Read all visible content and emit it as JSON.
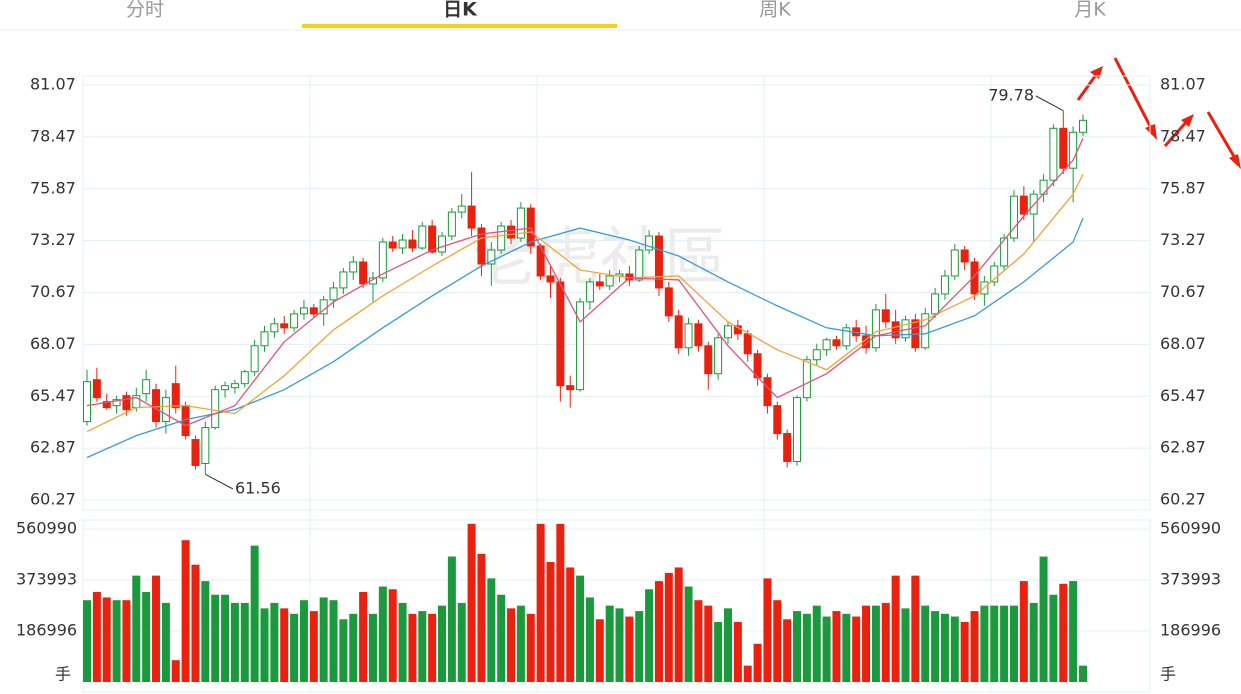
{
  "tabs": [
    "分时",
    "日K",
    "周K",
    "月K"
  ],
  "active_tab": 1,
  "watermark": "老虎社區",
  "chart_data": {
    "type": "candlestick",
    "open": [
      64.2,
      66.3,
      65.2,
      65.0,
      65.5,
      64.9,
      65.6,
      65.8,
      64.2,
      66.1,
      65.0,
      63.3,
      62.1,
      63.9,
      65.8,
      65.9,
      66.1,
      66.7,
      68.0,
      68.7,
      69.1,
      68.9,
      69.6,
      69.9,
      69.6,
      70.3,
      70.9,
      71.7,
      72.2,
      71.1,
      71.4,
      73.2,
      72.9,
      73.3,
      72.9,
      74.0,
      72.7,
      73.5,
      74.7,
      75.0,
      73.9,
      72.1,
      72.8,
      74.0,
      73.4,
      74.9,
      73.0,
      71.5,
      71.2,
      66.0,
      65.8,
      70.2,
      71.2,
      71.0,
      71.5,
      71.6,
      71.3,
      72.8,
      73.5,
      70.9,
      69.5,
      67.9,
      69.1,
      68.0,
      66.6,
      68.4,
      69.0,
      68.6,
      67.6,
      66.4,
      65.0,
      63.6,
      62.2,
      65.4,
      67.3,
      67.8,
      68.3,
      68.0,
      68.9,
      68.5,
      67.9,
      69.8,
      69.2,
      68.4,
      69.3,
      67.9,
      69.6,
      70.6,
      71.5,
      72.8,
      72.2,
      70.6,
      71.2,
      72.0,
      73.4,
      75.5,
      74.6,
      75.6,
      76.3,
      78.9,
      76.9,
      78.7
    ],
    "high": [
      66.8,
      66.9,
      65.6,
      65.5,
      65.7,
      65.9,
      66.8,
      66.1,
      65.8,
      67.0,
      65.2,
      63.5,
      64.2,
      66.0,
      66.2,
      66.3,
      66.8,
      68.3,
      69.0,
      69.4,
      69.5,
      69.8,
      70.3,
      70.1,
      70.5,
      71.2,
      71.9,
      72.5,
      72.4,
      71.7,
      73.4,
      73.5,
      73.6,
      73.8,
      74.2,
      74.3,
      73.7,
      74.9,
      75.6,
      76.7,
      74.1,
      73.2,
      74.2,
      74.3,
      75.2,
      75.1,
      73.1,
      72.0,
      71.4,
      66.5,
      70.4,
      71.4,
      71.6,
      71.8,
      71.8,
      72.0,
      73.0,
      73.8,
      73.7,
      71.2,
      69.8,
      69.4,
      69.3,
      68.2,
      68.6,
      69.2,
      69.3,
      68.8,
      67.8,
      66.6,
      65.2,
      63.8,
      65.5,
      67.5,
      68.1,
      68.4,
      68.5,
      69.1,
      69.3,
      69.0,
      70.1,
      70.6,
      69.8,
      69.5,
      69.6,
      69.9,
      70.9,
      71.8,
      73.1,
      73.0,
      72.4,
      71.5,
      72.2,
      73.6,
      75.8,
      76.0,
      75.8,
      76.6,
      79.1,
      79.78,
      79.0,
      79.6
    ],
    "low": [
      64.0,
      65.2,
      64.8,
      64.6,
      64.5,
      64.7,
      65.2,
      63.9,
      63.6,
      64.6,
      63.3,
      61.8,
      61.56,
      63.8,
      65.4,
      65.6,
      65.9,
      66.5,
      67.7,
      68.4,
      68.6,
      68.7,
      69.3,
      69.4,
      69.0,
      69.9,
      70.6,
      71.3,
      70.9,
      70.2,
      71.2,
      72.7,
      72.6,
      72.7,
      72.8,
      72.6,
      72.5,
      73.3,
      74.4,
      73.5,
      71.5,
      71.0,
      72.6,
      73.1,
      73.2,
      72.6,
      71.3,
      70.4,
      65.2,
      64.9,
      65.7,
      69.8,
      70.8,
      70.8,
      71.2,
      71.0,
      71.2,
      72.6,
      70.5,
      69.2,
      67.6,
      67.5,
      67.7,
      65.8,
      66.3,
      68.1,
      68.3,
      67.2,
      66.0,
      64.6,
      63.3,
      61.9,
      62.0,
      65.2,
      67.0,
      67.5,
      67.8,
      67.8,
      68.2,
      67.6,
      67.7,
      68.9,
      68.1,
      68.2,
      67.7,
      67.8,
      69.4,
      70.3,
      71.3,
      71.8,
      70.3,
      70.0,
      71.0,
      71.8,
      73.2,
      74.3,
      73.2,
      75.2,
      76.0,
      76.6,
      75.2,
      78.5
    ],
    "close": [
      66.2,
      65.4,
      64.9,
      65.3,
      64.8,
      65.5,
      66.3,
      64.2,
      65.4,
      64.9,
      63.5,
      62.0,
      63.9,
      65.8,
      66.0,
      66.1,
      66.7,
      68.0,
      68.7,
      69.1,
      68.9,
      69.6,
      69.9,
      69.6,
      70.3,
      70.9,
      71.7,
      72.2,
      71.1,
      71.4,
      73.2,
      72.9,
      73.3,
      72.9,
      74.0,
      72.7,
      73.5,
      74.7,
      75.0,
      73.9,
      72.1,
      72.8,
      74.0,
      73.4,
      74.9,
      73.0,
      71.5,
      71.2,
      66.0,
      65.8,
      70.2,
      71.2,
      71.0,
      71.5,
      71.6,
      71.3,
      72.8,
      73.5,
      70.9,
      69.5,
      67.9,
      69.1,
      68.0,
      66.6,
      68.4,
      69.0,
      68.6,
      67.6,
      66.4,
      65.0,
      63.6,
      62.2,
      65.4,
      67.3,
      67.8,
      68.3,
      68.0,
      68.9,
      68.5,
      67.9,
      69.8,
      69.2,
      68.4,
      69.3,
      67.9,
      69.6,
      70.6,
      71.5,
      72.8,
      72.2,
      70.6,
      71.2,
      72.0,
      73.4,
      75.5,
      74.6,
      75.6,
      76.3,
      78.9,
      76.9,
      78.7,
      79.3
    ],
    "volume": [
      300000,
      330000,
      310000,
      300000,
      300000,
      390000,
      330000,
      390000,
      290000,
      80000,
      520000,
      430000,
      370000,
      320000,
      320000,
      290000,
      290000,
      500000,
      270000,
      290000,
      270000,
      250000,
      300000,
      260000,
      310000,
      300000,
      230000,
      250000,
      330000,
      250000,
      350000,
      340000,
      290000,
      250000,
      260000,
      250000,
      280000,
      460000,
      290000,
      580000,
      470000,
      380000,
      320000,
      270000,
      280000,
      250000,
      580000,
      440000,
      580000,
      420000,
      390000,
      310000,
      230000,
      280000,
      270000,
      240000,
      260000,
      340000,
      370000,
      400000,
      420000,
      350000,
      300000,
      280000,
      220000,
      270000,
      220000,
      60000,
      140000,
      380000,
      300000,
      230000,
      260000,
      250000,
      280000,
      240000,
      260000,
      250000,
      240000,
      280000,
      280000,
      290000,
      390000,
      270000,
      390000,
      280000,
      260000,
      250000,
      240000,
      220000,
      260000,
      280000,
      280000,
      280000,
      280000,
      370000,
      290000,
      460000,
      320000,
      360000,
      370000,
      60000
    ],
    "lines": [
      {
        "color": "#3a9ad9",
        "x": [
          0,
          5,
          10,
          15,
          20,
          25,
          30,
          35,
          40,
          45,
          50,
          55,
          60,
          65,
          70,
          75,
          80,
          85,
          90,
          95,
          100,
          101
        ],
        "values": [
          62.4,
          63.5,
          64.3,
          64.8,
          65.8,
          67.2,
          68.9,
          70.5,
          72.0,
          73.2,
          73.9,
          73.3,
          72.5,
          71.2,
          70.0,
          68.9,
          68.5,
          68.6,
          69.5,
          71.2,
          73.2,
          74.4
        ]
      },
      {
        "color": "#f5a33a",
        "x": [
          0,
          5,
          10,
          15,
          20,
          25,
          30,
          35,
          40,
          45,
          50,
          55,
          60,
          65,
          70,
          75,
          80,
          85,
          90,
          95,
          100,
          101
        ],
        "values": [
          63.7,
          64.9,
          65.0,
          64.6,
          66.5,
          68.8,
          70.5,
          72.0,
          73.4,
          73.7,
          71.8,
          71.4,
          71.5,
          69.2,
          67.8,
          66.8,
          68.7,
          69.3,
          70.5,
          72.6,
          75.6,
          76.6
        ]
      },
      {
        "color": "#e0557a",
        "x": [
          0,
          5,
          10,
          15,
          20,
          25,
          30,
          35,
          40,
          45,
          50,
          55,
          60,
          65,
          70,
          75,
          80,
          85,
          90,
          95,
          100,
          101
        ],
        "values": [
          65.0,
          65.4,
          64.0,
          65.0,
          68.2,
          70.2,
          71.6,
          72.8,
          73.6,
          73.9,
          69.2,
          71.4,
          71.3,
          68.0,
          65.4,
          66.6,
          68.5,
          69.0,
          71.5,
          74.5,
          77.3,
          78.4
        ]
      }
    ],
    "up_color": "#1a9a3c",
    "down_color": "#e8220f",
    "ylim": [
      60.27,
      81.07
    ],
    "yticks": [
      81.07,
      78.47,
      75.87,
      73.27,
      70.67,
      68.07,
      65.47,
      62.87,
      60.27
    ],
    "vlim": [
      0,
      594000
    ],
    "vticks": [
      560990,
      373993,
      186996,
      {
        "value": 0,
        "label": "手"
      }
    ],
    "grid": true
  }
}
